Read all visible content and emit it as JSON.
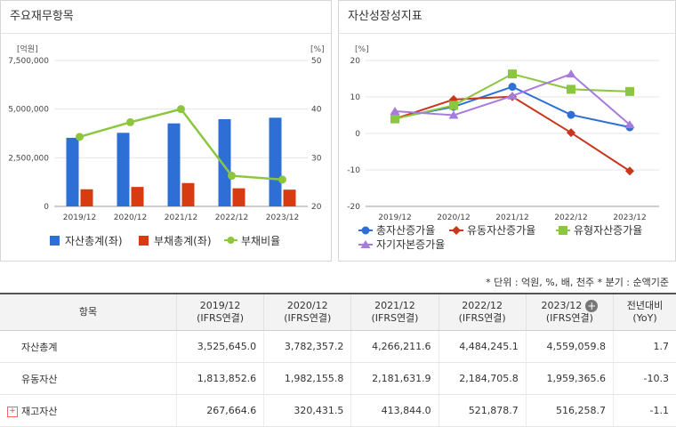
{
  "panels": {
    "left_title": "주요재무항목",
    "right_title": "자산성장성지표"
  },
  "chart_data": [
    {
      "type": "bar",
      "title": "주요재무항목",
      "categories": [
        "2019/12",
        "2020/12",
        "2021/12",
        "2022/12",
        "2023/12"
      ],
      "y_left_unit": "[억원]",
      "y_right_unit": "[%]",
      "y_left_ticks": [
        "7,500,000",
        "5,000,000",
        "2,500,000",
        "0"
      ],
      "y_right_ticks": [
        "50",
        "40",
        "30",
        "20"
      ],
      "ylim_left": [
        0,
        7500000
      ],
      "ylim_right": [
        20,
        50
      ],
      "series": [
        {
          "name": "자산총계(좌)",
          "type": "bar",
          "axis": "left",
          "color": "#2e6fd6",
          "values": [
            3525645.0,
            3782357.2,
            4266211.6,
            4484245.1,
            4559059.8
          ]
        },
        {
          "name": "부채총계(좌)",
          "type": "bar",
          "axis": "left",
          "color": "#d83a12",
          "values": [
            880000,
            1000000,
            1200000,
            930000,
            860000
          ]
        },
        {
          "name": "부채비율",
          "type": "line",
          "axis": "right",
          "color": "#8cc63f",
          "values": [
            34.3,
            37.3,
            40.0,
            26.3,
            25.5
          ]
        }
      ],
      "grid": true,
      "legend": "bottom"
    },
    {
      "type": "line",
      "title": "자산성장성지표",
      "categories": [
        "2019/12",
        "2020/12",
        "2021/12",
        "2022/12",
        "2023/12"
      ],
      "y_unit": "[%]",
      "y_ticks": [
        "20",
        "10",
        "0",
        "-10",
        "-20"
      ],
      "ylim": [
        -20,
        20
      ],
      "series": [
        {
          "name": "총자산증가율",
          "color": "#2e6fd6",
          "marker": "circle",
          "values": [
            4.2,
            7.3,
            12.8,
            5.1,
            1.7
          ]
        },
        {
          "name": "유동자산증가율",
          "color": "#c8361b",
          "marker": "diamond",
          "values": [
            4.0,
            9.3,
            10.1,
            0.2,
            -10.3
          ]
        },
        {
          "name": "유형자산증가율",
          "color": "#8cc63f",
          "marker": "square",
          "values": [
            4.0,
            7.7,
            16.3,
            12.1,
            11.5
          ]
        },
        {
          "name": "자기자본증가율",
          "color": "#a77bdc",
          "marker": "triangle",
          "values": [
            6.1,
            5.0,
            10.3,
            16.3,
            2.4
          ]
        }
      ],
      "grid": true,
      "legend": "bottom"
    }
  ],
  "table": {
    "units_note": "* 단위 : 억원, %, 배, 천주   * 분기 : 순액기준",
    "header_item": "항목",
    "years": [
      {
        "year": "2019/12",
        "basis": "(IFRS연결)"
      },
      {
        "year": "2020/12",
        "basis": "(IFRS연결)"
      },
      {
        "year": "2021/12",
        "basis": "(IFRS연결)"
      },
      {
        "year": "2022/12",
        "basis": "(IFRS연결)"
      },
      {
        "year": "2023/12",
        "basis": "(IFRS연결)"
      }
    ],
    "yoy_label": "전년대비",
    "yoy_sub": "(YoY)",
    "plus_symbol": "+",
    "rows": [
      {
        "name": "자산총계",
        "values": [
          "3,525,645.0",
          "3,782,357.2",
          "4,266,211.6",
          "4,484,245.1",
          "4,559,059.8"
        ],
        "yoy": "1.7",
        "neg": false,
        "expandable": false
      },
      {
        "name": "유동자산",
        "values": [
          "1,813,852.6",
          "1,982,155.8",
          "2,181,631.9",
          "2,184,705.8",
          "1,959,365.6"
        ],
        "yoy": "-10.3",
        "neg": true,
        "expandable": false
      },
      {
        "name": "재고자산",
        "values": [
          "267,664.6",
          "320,431.5",
          "413,844.0",
          "521,878.7",
          "516,258.7"
        ],
        "yoy": "-1.1",
        "neg": true,
        "expandable": true
      }
    ],
    "expand_symbol": "+"
  }
}
